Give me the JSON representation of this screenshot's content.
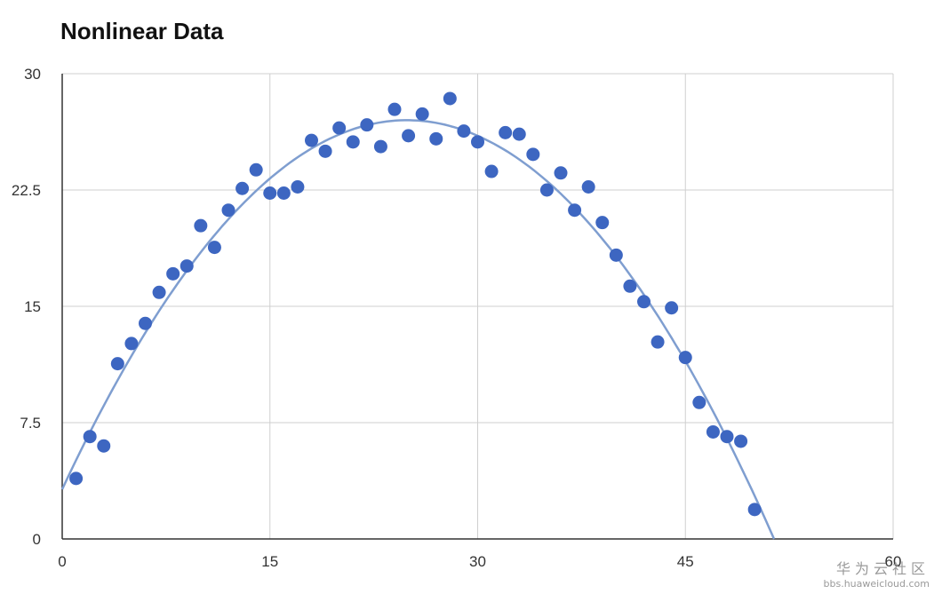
{
  "chart_data": {
    "type": "scatter",
    "title": "Nonlinear Data",
    "xlabel": "",
    "ylabel": "",
    "xlim": [
      0,
      60
    ],
    "ylim": [
      0,
      30
    ],
    "x_ticks": [
      "0",
      "15",
      "30",
      "45",
      "60"
    ],
    "y_ticks": [
      "0",
      "7.5",
      "15",
      "22.5",
      "30"
    ],
    "grid": true,
    "legend": "none",
    "colors": {
      "points": "#3d66c1",
      "trendline": "#7f9ed0",
      "grid": "#cfcfcf",
      "axis": "#333333"
    },
    "series": [
      {
        "type": "scatter",
        "x": [
          1,
          2,
          3,
          4,
          5,
          6,
          7,
          8,
          9,
          10,
          11,
          12,
          13,
          14,
          15,
          16,
          17,
          18,
          19,
          20,
          21,
          22,
          23,
          24,
          25,
          26,
          27,
          28,
          29,
          30,
          31,
          32,
          33,
          34,
          35,
          36,
          37,
          38,
          39,
          40,
          41,
          42,
          43,
          44,
          45,
          46,
          47,
          48,
          49,
          50
        ],
        "y": [
          3.9,
          6.6,
          6.0,
          11.3,
          12.6,
          13.9,
          15.9,
          17.1,
          17.6,
          20.2,
          18.8,
          21.2,
          22.6,
          23.8,
          22.3,
          22.3,
          22.7,
          25.7,
          25.0,
          26.5,
          25.6,
          26.7,
          25.3,
          27.7,
          26.0,
          27.4,
          25.8,
          28.4,
          26.3,
          25.6,
          23.7,
          26.2,
          26.1,
          24.8,
          22.5,
          23.6,
          21.2,
          22.7,
          20.4,
          18.3,
          16.3,
          15.3,
          12.7,
          14.9,
          11.7,
          8.8,
          6.9,
          6.6,
          6.3,
          1.9
        ]
      },
      {
        "type": "trendline",
        "form": "quadratic",
        "x": [
          0,
          25,
          51.4
        ],
        "y": [
          3.2,
          27.0,
          0
        ]
      }
    ]
  },
  "watermark": {
    "brand": "华为云社区",
    "url": "bbs.huaweicloud.com"
  },
  "icons": {
    "watermark-logo": "none"
  }
}
